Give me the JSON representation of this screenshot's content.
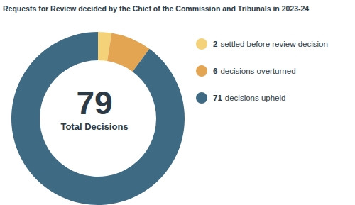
{
  "chart_data": {
    "type": "pie",
    "title": "Requests for Review decided by the Chief of the Commission and Tribunals in 2023-24",
    "categories": [
      "settled before review decision",
      "decisions overturned",
      "decisions upheld"
    ],
    "values": [
      2,
      6,
      71
    ],
    "colors": [
      "#f3d27a",
      "#e3a552",
      "#3e6a83"
    ],
    "total": 79,
    "total_label": "Total Decisions",
    "legend": "right"
  }
}
